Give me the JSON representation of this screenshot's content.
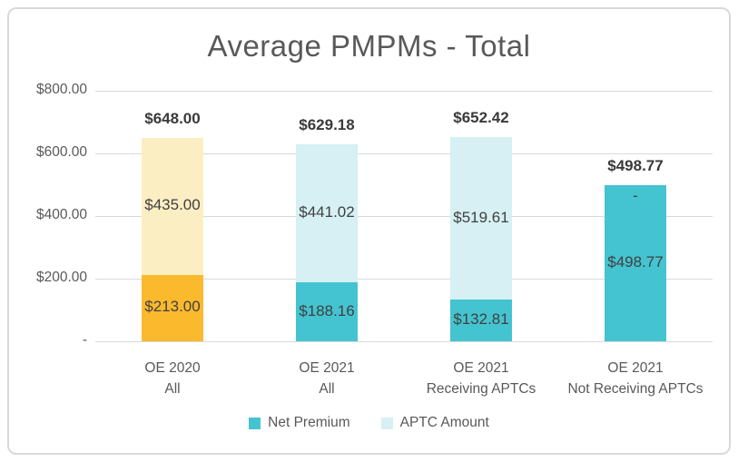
{
  "window": {
    "background": "#FFFFFF",
    "frame_border_color": "#D9D9D9"
  },
  "chart_data": {
    "type": "bar",
    "stacked": true,
    "title": "Average PMPMs - Total",
    "categories": [
      [
        "OE 2020",
        "All"
      ],
      [
        "OE 2021",
        "All"
      ],
      [
        "OE 2021",
        "Receiving APTCs"
      ],
      [
        "OE 2021",
        "Not Receiving APTCs"
      ]
    ],
    "series": [
      {
        "name": "Net Premium",
        "color": "#44C4D0",
        "values": [
          213.0,
          188.16,
          132.81,
          498.77
        ],
        "labels": [
          "$213.00",
          "$188.16",
          "$132.81",
          "$498.77"
        ]
      },
      {
        "name": "APTC Amount",
        "color": "#D6F0F3",
        "values": [
          435.0,
          441.02,
          519.61,
          0
        ],
        "labels": [
          "$435.00",
          "$441.02",
          "$519.61",
          "-"
        ]
      }
    ],
    "totals": {
      "values": [
        648.0,
        629.18,
        652.42,
        498.77
      ],
      "labels": [
        "$648.00",
        "$629.18",
        "$652.42",
        "$498.77"
      ]
    },
    "bar_color_overrides": [
      {
        "index": 0,
        "net": "#FBB92D",
        "aptc": "#FCEEC3"
      }
    ],
    "y_axis": {
      "min": 0,
      "max": 800,
      "ticks": [
        {
          "value": 800,
          "label": "$800.00"
        },
        {
          "value": 600,
          "label": "$600.00"
        },
        {
          "value": 400,
          "label": "$400.00"
        },
        {
          "value": 200,
          "label": "$200.00"
        },
        {
          "value": 0,
          "label": "-"
        }
      ]
    },
    "legend": {
      "position": "bottom",
      "items": [
        {
          "label": "Net Premium",
          "color": "#44C4D0"
        },
        {
          "label": "APTC Amount",
          "color": "#D6F0F3"
        }
      ]
    },
    "grid": true,
    "gridline_color": "#D9D9D9",
    "text_colors": {
      "title": "#595959",
      "axis": "#595959",
      "data_label": "#404040",
      "total_label": "#3A3A3A",
      "legend": "#595959"
    }
  }
}
